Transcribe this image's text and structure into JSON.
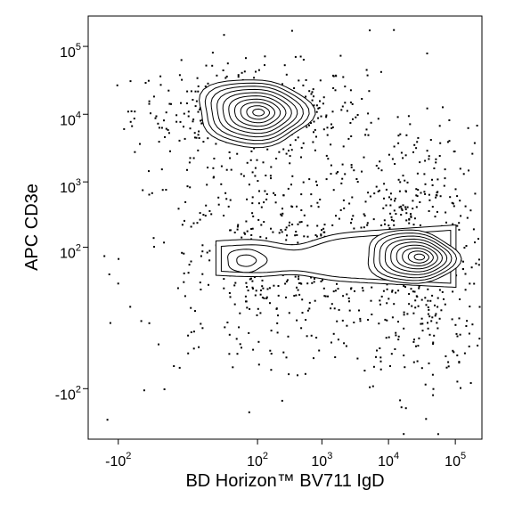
{
  "chart_data": {
    "type": "scatter",
    "subtype": "flow-cytometry-contour-dot-plot",
    "xlabel": "BD Horizon™ BV711 IgD",
    "ylabel": "APC CD3e",
    "x_scale": "biexponential",
    "y_scale": "biexponential",
    "xlim": [
      -300,
      250000
    ],
    "ylim": [
      -600,
      280000
    ],
    "x_ticks": [
      {
        "value": -100,
        "base": "-10",
        "exp": "2"
      },
      {
        "value": 100,
        "base": "10",
        "exp": "2"
      },
      {
        "value": 1000,
        "base": "10",
        "exp": "3"
      },
      {
        "value": 10000,
        "base": "10",
        "exp": "4"
      },
      {
        "value": 100000,
        "base": "10",
        "exp": "5"
      }
    ],
    "y_ticks": [
      {
        "value": -100,
        "base": "-10",
        "exp": "2"
      },
      {
        "value": 100,
        "base": "10",
        "exp": "2"
      },
      {
        "value": 1000,
        "base": "10",
        "exp": "3"
      },
      {
        "value": 10000,
        "base": "10",
        "exp": "4"
      },
      {
        "value": 100000,
        "base": "10",
        "exp": "5"
      }
    ],
    "populations": [
      {
        "x_center": 70,
        "y_center": 12000,
        "x_range": [
          -60,
          800
        ],
        "y_range": [
          2500,
          30000
        ]
      },
      {
        "x_center": 60,
        "y_center": 60,
        "x_range": [
          -150,
          500
        ],
        "y_range": [
          -200,
          400
        ]
      },
      {
        "x_center": 30000,
        "y_center": 60,
        "x_range": [
          2000,
          80000
        ],
        "y_range": [
          -200,
          600
        ]
      }
    ],
    "grid": false,
    "legend": "none",
    "colors": {
      "dots": "#000000",
      "contours": "#000000",
      "fill": "#ffffff"
    }
  }
}
